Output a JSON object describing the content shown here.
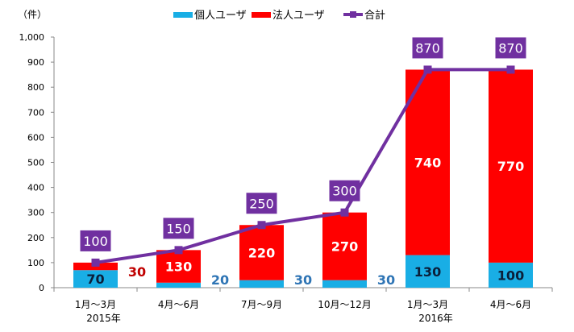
{
  "chart_data": {
    "type": "bar",
    "stacked": true,
    "ylabel": "（件）",
    "ylim": [
      0,
      1000
    ],
    "yticks": [
      "0",
      "100",
      "200",
      "300",
      "400",
      "500",
      "600",
      "700",
      "800",
      "900",
      "1,000"
    ],
    "categories": [
      "1月～3月",
      "4月～6月",
      "7月～9月",
      "10月～12月",
      "1月～3月",
      "4月～6月"
    ],
    "year_labels": [
      "2015年",
      "",
      "",
      "",
      "2016年",
      ""
    ],
    "series": [
      {
        "name": "個人ユーザ",
        "type": "bar",
        "color": "#19AEE5",
        "values": [
          70,
          20,
          30,
          30,
          130,
          100
        ]
      },
      {
        "name": "法人ユーザ",
        "type": "bar",
        "color": "#FF0000",
        "values": [
          30,
          130,
          220,
          270,
          740,
          770
        ]
      },
      {
        "name": "合計",
        "type": "line",
        "color": "#7030A0",
        "values": [
          100,
          150,
          250,
          300,
          870,
          870
        ]
      }
    ],
    "legend": "top",
    "grid": false
  }
}
